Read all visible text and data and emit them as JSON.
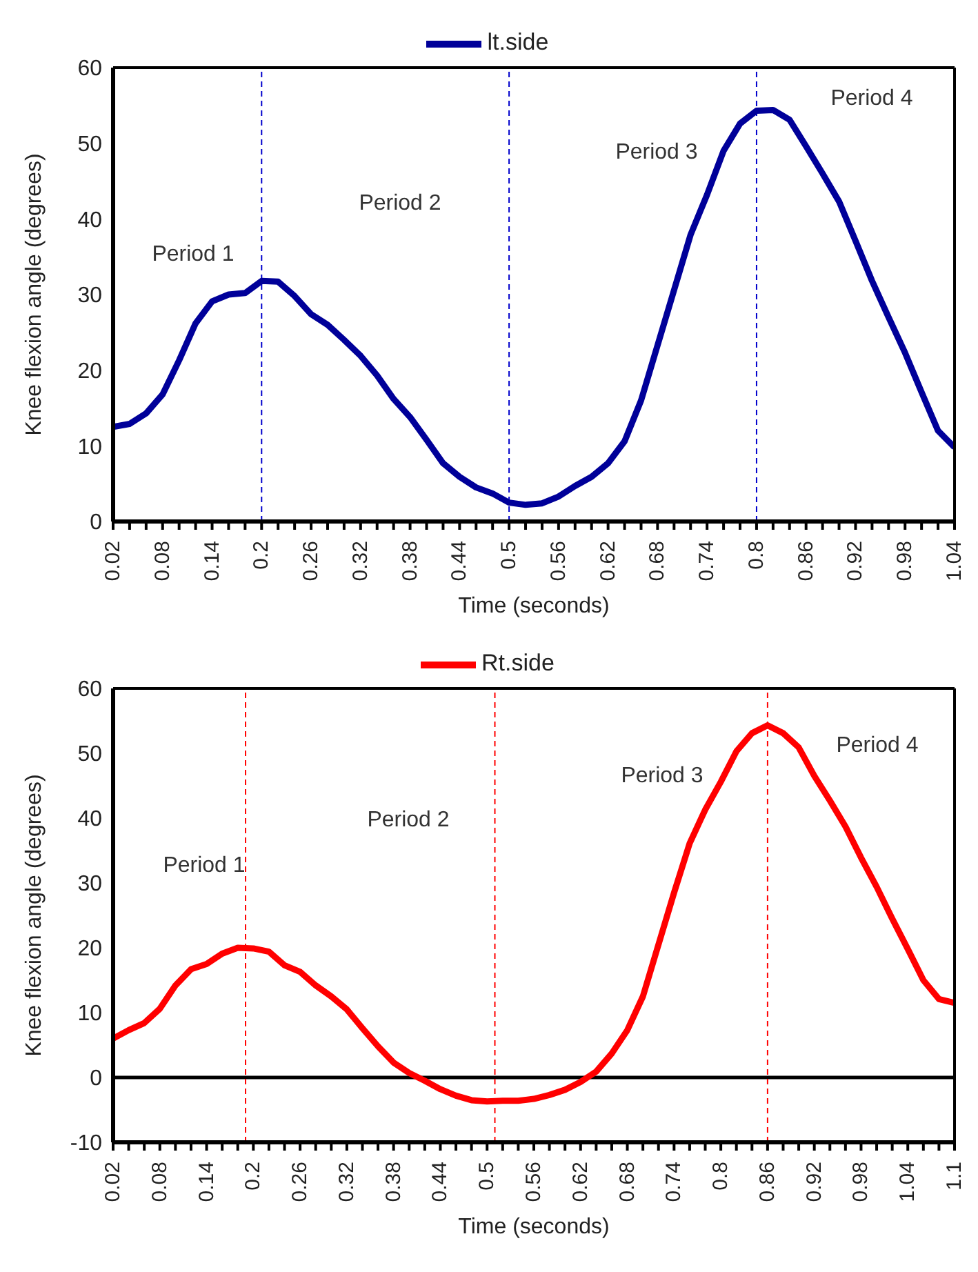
{
  "chart_data": [
    {
      "type": "line",
      "xlabel": "Time (seconds)",
      "ylabel": "Knee flexion angle (degrees)",
      "legend": "top",
      "marker": "none",
      "x": [
        0.02,
        0.04,
        0.06,
        0.08,
        0.1,
        0.12,
        0.14,
        0.16,
        0.18,
        0.2,
        0.22,
        0.24,
        0.26,
        0.28,
        0.3,
        0.32,
        0.34,
        0.36,
        0.38,
        0.4,
        0.42,
        0.44,
        0.46,
        0.48,
        0.5,
        0.52,
        0.54,
        0.56,
        0.58,
        0.6,
        0.62,
        0.64,
        0.66,
        0.68,
        0.7,
        0.72,
        0.74,
        0.76,
        0.78,
        0.8,
        0.82,
        0.84,
        0.86,
        0.88,
        0.9,
        0.92,
        0.94,
        0.96,
        0.98,
        1.0,
        1.02,
        1.04
      ],
      "series": [
        {
          "name": "lt.side",
          "color": "#000099",
          "values": [
            12.5,
            12.9,
            14.3,
            16.8,
            21.3,
            26.2,
            29.1,
            30.0,
            30.2,
            31.8,
            31.7,
            29.8,
            27.4,
            26.0,
            24.0,
            21.9,
            19.3,
            16.2,
            13.8,
            10.8,
            7.7,
            5.9,
            4.5,
            3.7,
            2.5,
            2.2,
            2.4,
            3.3,
            4.7,
            5.9,
            7.7,
            10.6,
            16.0,
            23.3,
            30.6,
            37.9,
            43.2,
            49.0,
            52.6,
            54.3,
            54.4,
            53.1,
            49.6,
            46.0,
            42.3,
            37.1,
            31.8,
            27.0,
            22.3,
            17.1,
            12.0,
            9.8
          ]
        }
      ],
      "xlim": [
        0.02,
        1.04
      ],
      "xticks": [
        0.02,
        {
          "value": 0.04,
          "label": null
        },
        {
          "value": 0.06,
          "label": null
        },
        0.08,
        {
          "value": 0.1,
          "label": null
        },
        {
          "value": 0.12,
          "label": null
        },
        0.14,
        {
          "value": 0.16,
          "label": null
        },
        {
          "value": 0.18,
          "label": null
        },
        0.2,
        {
          "value": 0.22,
          "label": null
        },
        {
          "value": 0.24,
          "label": null
        },
        0.26,
        {
          "value": 0.28,
          "label": null
        },
        {
          "value": 0.3,
          "label": null
        },
        0.32,
        {
          "value": 0.34,
          "label": null
        },
        {
          "value": 0.36,
          "label": null
        },
        0.38,
        {
          "value": 0.4,
          "label": null
        },
        {
          "value": 0.42,
          "label": null
        },
        0.44,
        {
          "value": 0.46,
          "label": null
        },
        {
          "value": 0.48,
          "label": null
        },
        0.5,
        {
          "value": 0.52,
          "label": null
        },
        {
          "value": 0.54,
          "label": null
        },
        0.56,
        {
          "value": 0.58,
          "label": null
        },
        {
          "value": 0.6,
          "label": null
        },
        0.62,
        {
          "value": 0.64,
          "label": null
        },
        {
          "value": 0.66,
          "label": null
        },
        0.68,
        {
          "value": 0.7,
          "label": null
        },
        {
          "value": 0.72,
          "label": null
        },
        0.74,
        {
          "value": 0.76,
          "label": null
        },
        {
          "value": 0.78,
          "label": null
        },
        0.8,
        {
          "value": 0.82,
          "label": null
        },
        {
          "value": 0.84,
          "label": null
        },
        0.86,
        {
          "value": 0.88,
          "label": null
        },
        {
          "value": 0.9,
          "label": null
        },
        0.92,
        {
          "value": 0.94,
          "label": null
        },
        {
          "value": 0.96,
          "label": null
        },
        0.98,
        {
          "value": 1.0,
          "label": null
        },
        {
          "value": 1.02,
          "label": null
        },
        1.04
      ],
      "ylim": [
        0,
        60
      ],
      "yticks": [
        0,
        10,
        20,
        30,
        40,
        50,
        60
      ],
      "ref_lines": [
        {
          "axis": "x",
          "value": 0.2,
          "color": "#0000cc",
          "line_style": "dashed"
        },
        {
          "axis": "x",
          "value": 0.5,
          "color": "#0000cc",
          "line_style": "dashed"
        },
        {
          "axis": "x",
          "value": 0.8,
          "color": "#0000cc",
          "line_style": "dashed"
        }
      ],
      "annotations": [
        "Period 1",
        "Period 2",
        "Period 3",
        "Period 4"
      ]
    },
    {
      "type": "line",
      "xlabel": "Time (seconds)",
      "ylabel": "Knee flexion angle (degrees)",
      "legend": "top",
      "marker": "none",
      "x": [
        0.02,
        0.04,
        0.06,
        0.08,
        0.1,
        0.12,
        0.14,
        0.16,
        0.18,
        0.2,
        0.22,
        0.24,
        0.26,
        0.28,
        0.3,
        0.32,
        0.34,
        0.36,
        0.38,
        0.4,
        0.42,
        0.44,
        0.46,
        0.48,
        0.5,
        0.52,
        0.54,
        0.56,
        0.58,
        0.6,
        0.62,
        0.64,
        0.66,
        0.68,
        0.7,
        0.72,
        0.74,
        0.76,
        0.78,
        0.8,
        0.82,
        0.84,
        0.86,
        0.88,
        0.9,
        0.92,
        0.94,
        0.96,
        0.98,
        1.0,
        1.02,
        1.04,
        1.06,
        1.08,
        1.1
      ],
      "series": [
        {
          "name": "Rt.side",
          "color": "#ff0000",
          "values": [
            6.0,
            7.3,
            8.4,
            10.6,
            14.2,
            16.7,
            17.5,
            19.1,
            20.0,
            19.9,
            19.4,
            17.3,
            16.3,
            14.2,
            12.5,
            10.5,
            7.6,
            4.8,
            2.3,
            0.7,
            -0.5,
            -1.8,
            -2.8,
            -3.5,
            -3.7,
            -3.6,
            -3.6,
            -3.3,
            -2.7,
            -1.9,
            -0.7,
            0.9,
            3.7,
            7.3,
            12.5,
            20.5,
            28.5,
            36.1,
            41.3,
            45.6,
            50.3,
            53.1,
            54.3,
            53.1,
            50.9,
            46.5,
            42.7,
            38.7,
            33.9,
            29.4,
            24.5,
            19.8,
            15.0,
            12.1,
            11.5
          ]
        }
      ],
      "xlim": [
        0.02,
        1.1
      ],
      "xticks": [
        0.02,
        {
          "value": 0.04,
          "label": null
        },
        {
          "value": 0.06,
          "label": null
        },
        0.08,
        {
          "value": 0.1,
          "label": null
        },
        {
          "value": 0.12,
          "label": null
        },
        0.14,
        {
          "value": 0.16,
          "label": null
        },
        {
          "value": 0.18,
          "label": null
        },
        0.2,
        {
          "value": 0.22,
          "label": null
        },
        {
          "value": 0.24,
          "label": null
        },
        0.26,
        {
          "value": 0.28,
          "label": null
        },
        {
          "value": 0.3,
          "label": null
        },
        0.32,
        {
          "value": 0.34,
          "label": null
        },
        {
          "value": 0.36,
          "label": null
        },
        0.38,
        {
          "value": 0.4,
          "label": null
        },
        {
          "value": 0.42,
          "label": null
        },
        0.44,
        {
          "value": 0.46,
          "label": null
        },
        {
          "value": 0.48,
          "label": null
        },
        0.5,
        {
          "value": 0.52,
          "label": null
        },
        {
          "value": 0.54,
          "label": null
        },
        0.56,
        {
          "value": 0.58,
          "label": null
        },
        {
          "value": 0.6,
          "label": null
        },
        0.62,
        {
          "value": 0.64,
          "label": null
        },
        {
          "value": 0.66,
          "label": null
        },
        0.68,
        {
          "value": 0.7,
          "label": null
        },
        {
          "value": 0.72,
          "label": null
        },
        0.74,
        {
          "value": 0.76,
          "label": null
        },
        {
          "value": 0.78,
          "label": null
        },
        0.8,
        {
          "value": 0.82,
          "label": null
        },
        {
          "value": 0.84,
          "label": null
        },
        0.86,
        {
          "value": 0.88,
          "label": null
        },
        {
          "value": 0.9,
          "label": null
        },
        0.92,
        {
          "value": 0.94,
          "label": null
        },
        {
          "value": 0.96,
          "label": null
        },
        0.98,
        {
          "value": 1.0,
          "label": null
        },
        {
          "value": 1.02,
          "label": null
        },
        1.04,
        {
          "value": 1.06,
          "label": null
        },
        {
          "value": 1.08,
          "label": null
        },
        1.1
      ],
      "ylim": [
        -10,
        60
      ],
      "yticks": [
        -10,
        0,
        10,
        20,
        30,
        40,
        50,
        60
      ],
      "ref_lines": [
        {
          "axis": "y",
          "value": 0,
          "color": "#000000",
          "line_style": "solid"
        },
        {
          "axis": "x",
          "value": 0.19,
          "color": "#ff0000",
          "line_style": "dashed"
        },
        {
          "axis": "x",
          "value": 0.51,
          "color": "#ff0000",
          "line_style": "dashed"
        },
        {
          "axis": "x",
          "value": 0.86,
          "color": "#ff0000",
          "line_style": "dashed"
        }
      ],
      "annotations": [
        "Period 1",
        "Period 2",
        "Period 3",
        "Period 4"
      ]
    }
  ]
}
